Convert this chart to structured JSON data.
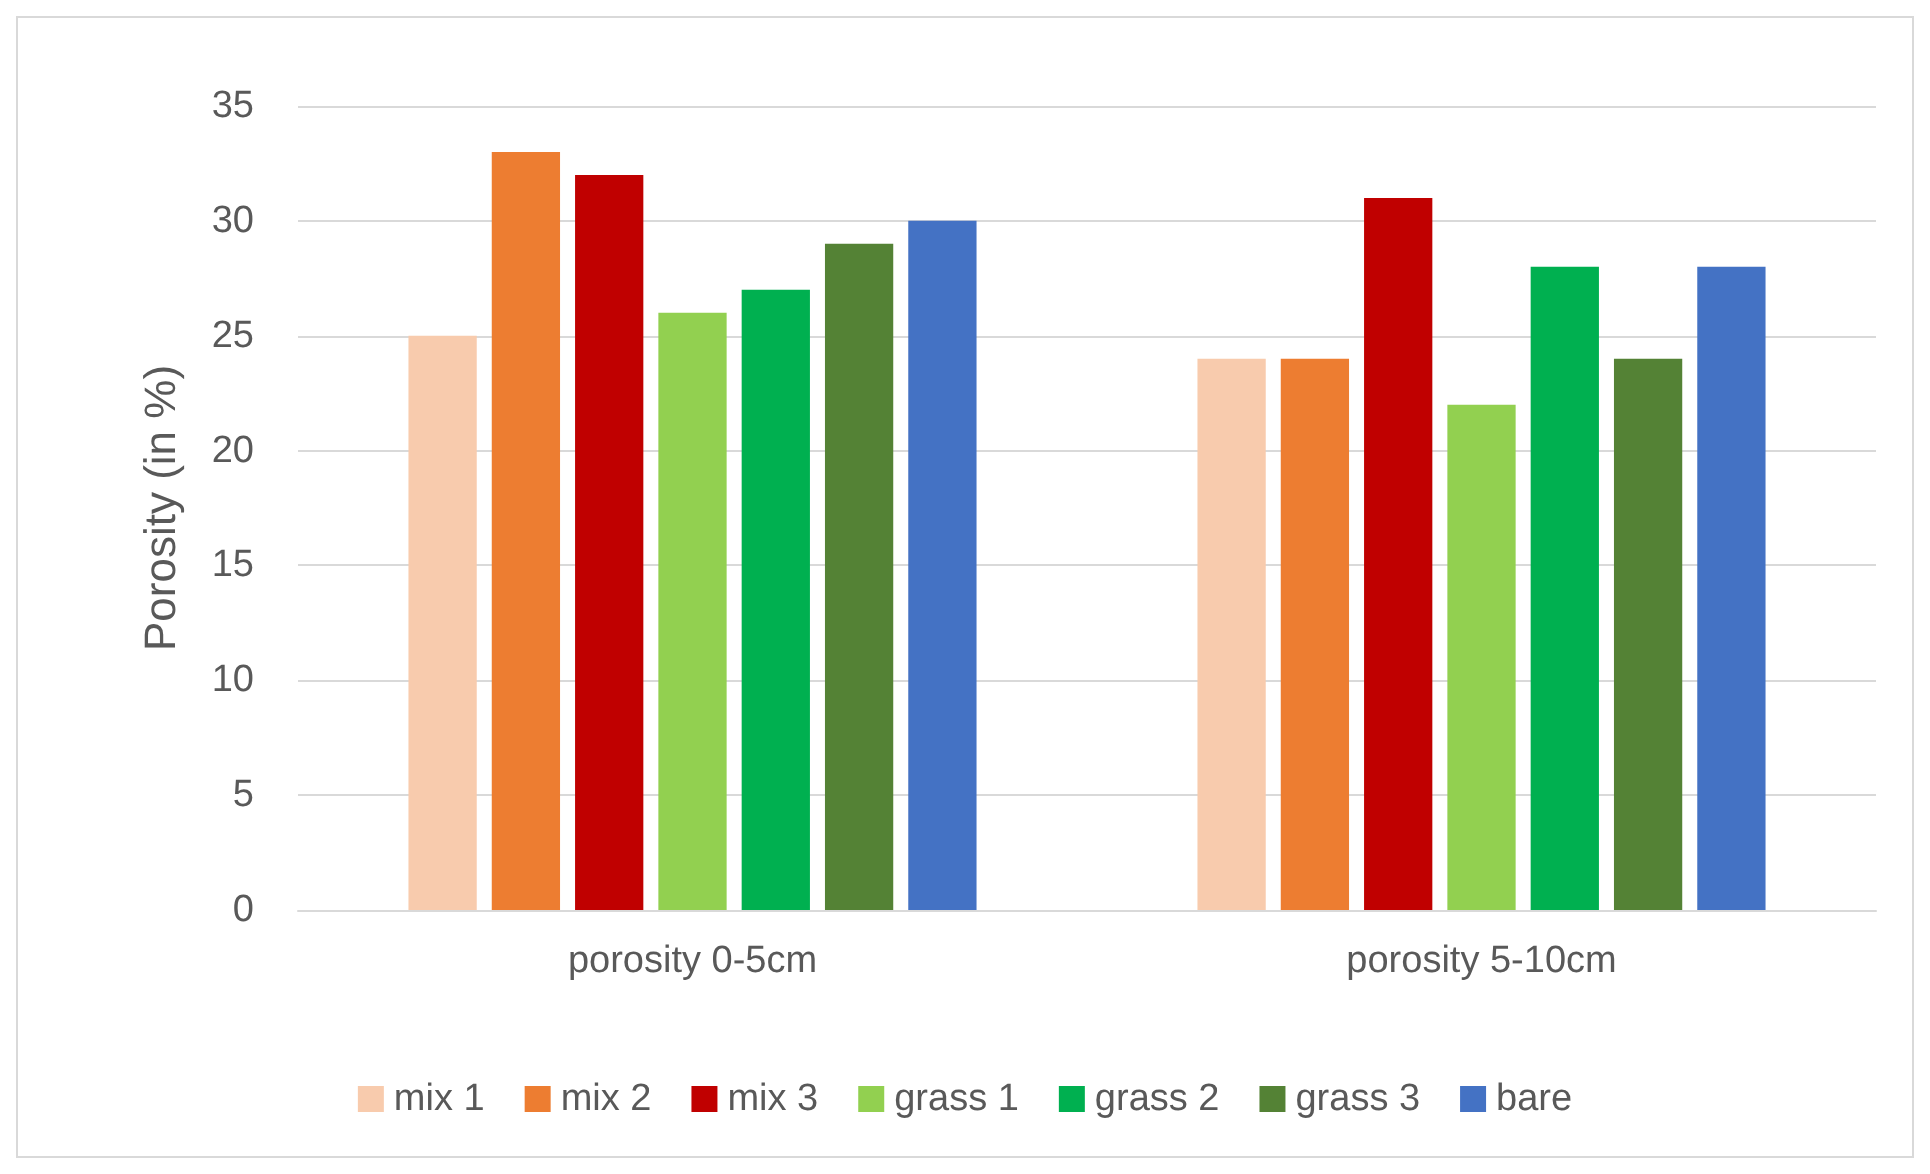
{
  "chart_data": {
    "type": "bar",
    "ylabel": "Porosity (in %)",
    "categories": [
      "porosity 0-5cm",
      "porosity 5-10cm"
    ],
    "series": [
      {
        "name": "mix 1",
        "color": "#f8cbad",
        "values": [
          25,
          24
        ]
      },
      {
        "name": "mix 2",
        "color": "#ed7d31",
        "values": [
          33,
          24
        ]
      },
      {
        "name": "mix 3",
        "color": "#c00000",
        "values": [
          32,
          31
        ]
      },
      {
        "name": "grass 1",
        "color": "#92d050",
        "values": [
          26,
          22
        ]
      },
      {
        "name": "grass 2",
        "color": "#00b050",
        "values": [
          27,
          28
        ]
      },
      {
        "name": "grass 3",
        "color": "#548235",
        "values": [
          29,
          24
        ]
      },
      {
        "name": "bare",
        "color": "#4472c4",
        "values": [
          30,
          28
        ]
      }
    ],
    "ylim": [
      0,
      35
    ],
    "yticks": [
      0,
      5,
      10,
      15,
      20,
      25,
      30,
      35
    ],
    "grid": "y",
    "legend": "bottom"
  }
}
